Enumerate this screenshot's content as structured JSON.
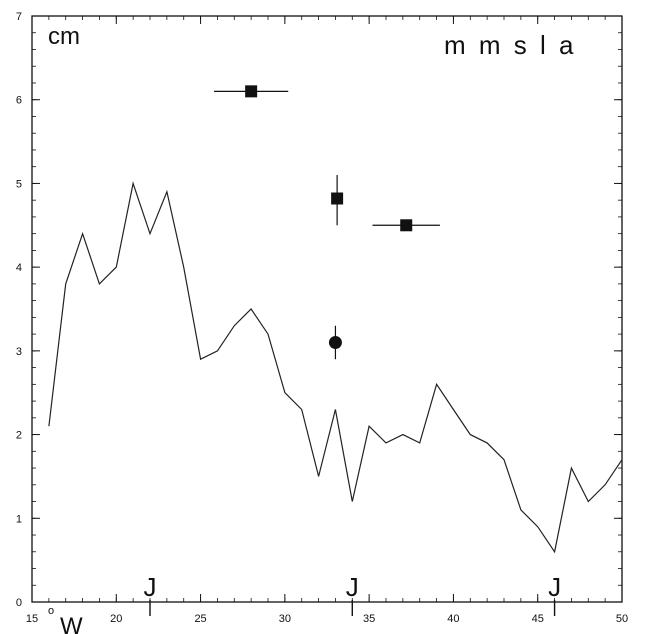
{
  "chart_data": {
    "type": "line",
    "title": "m m s l a",
    "ylabel": "cm",
    "xlabel": "W",
    "x_degree_symbol": "o",
    "xlim": [
      15,
      50
    ],
    "ylim": [
      0,
      7
    ],
    "x_ticks": [
      15,
      20,
      25,
      30,
      35,
      40,
      45,
      50
    ],
    "y_ticks": [
      0,
      1,
      2,
      3,
      4,
      5,
      6,
      7
    ],
    "series": [
      {
        "x": [
          16,
          17,
          18,
          19,
          20,
          21,
          22,
          23,
          24,
          25,
          26,
          27,
          28,
          29,
          30,
          31,
          32,
          33,
          34,
          35,
          36,
          37,
          38,
          39,
          40,
          41,
          42,
          43,
          44,
          45,
          46,
          47,
          48,
          49,
          50
        ],
        "values": [
          2.1,
          3.8,
          4.4,
          3.8,
          4.0,
          5.0,
          4.4,
          4.9,
          4.0,
          2.9,
          3.0,
          3.3,
          3.5,
          3.2,
          2.5,
          2.3,
          1.5,
          2.3,
          1.2,
          2.1,
          1.9,
          2.0,
          1.9,
          2.6,
          2.3,
          2.0,
          1.9,
          1.7,
          1.1,
          0.9,
          0.6,
          1.6,
          1.2,
          1.4,
          1.7
        ]
      }
    ],
    "markers": [
      {
        "shape": "square",
        "x": 28.0,
        "y": 6.1,
        "xerr": [
          25.8,
          30.2
        ],
        "yerr": null
      },
      {
        "shape": "square",
        "x": 33.1,
        "y": 4.82,
        "xerr": null,
        "yerr": [
          4.5,
          5.1
        ]
      },
      {
        "shape": "square",
        "x": 37.2,
        "y": 4.5,
        "xerr": [
          35.2,
          39.2
        ],
        "yerr": null
      },
      {
        "shape": "circle",
        "x": 33.0,
        "y": 3.1,
        "xerr": null,
        "yerr": [
          2.9,
          3.3
        ]
      }
    ],
    "j_markers": [
      {
        "label": "J",
        "x": 22.0
      },
      {
        "label": "J",
        "x": 34.0
      },
      {
        "label": "J",
        "x": 46.0
      }
    ],
    "grid": false
  }
}
